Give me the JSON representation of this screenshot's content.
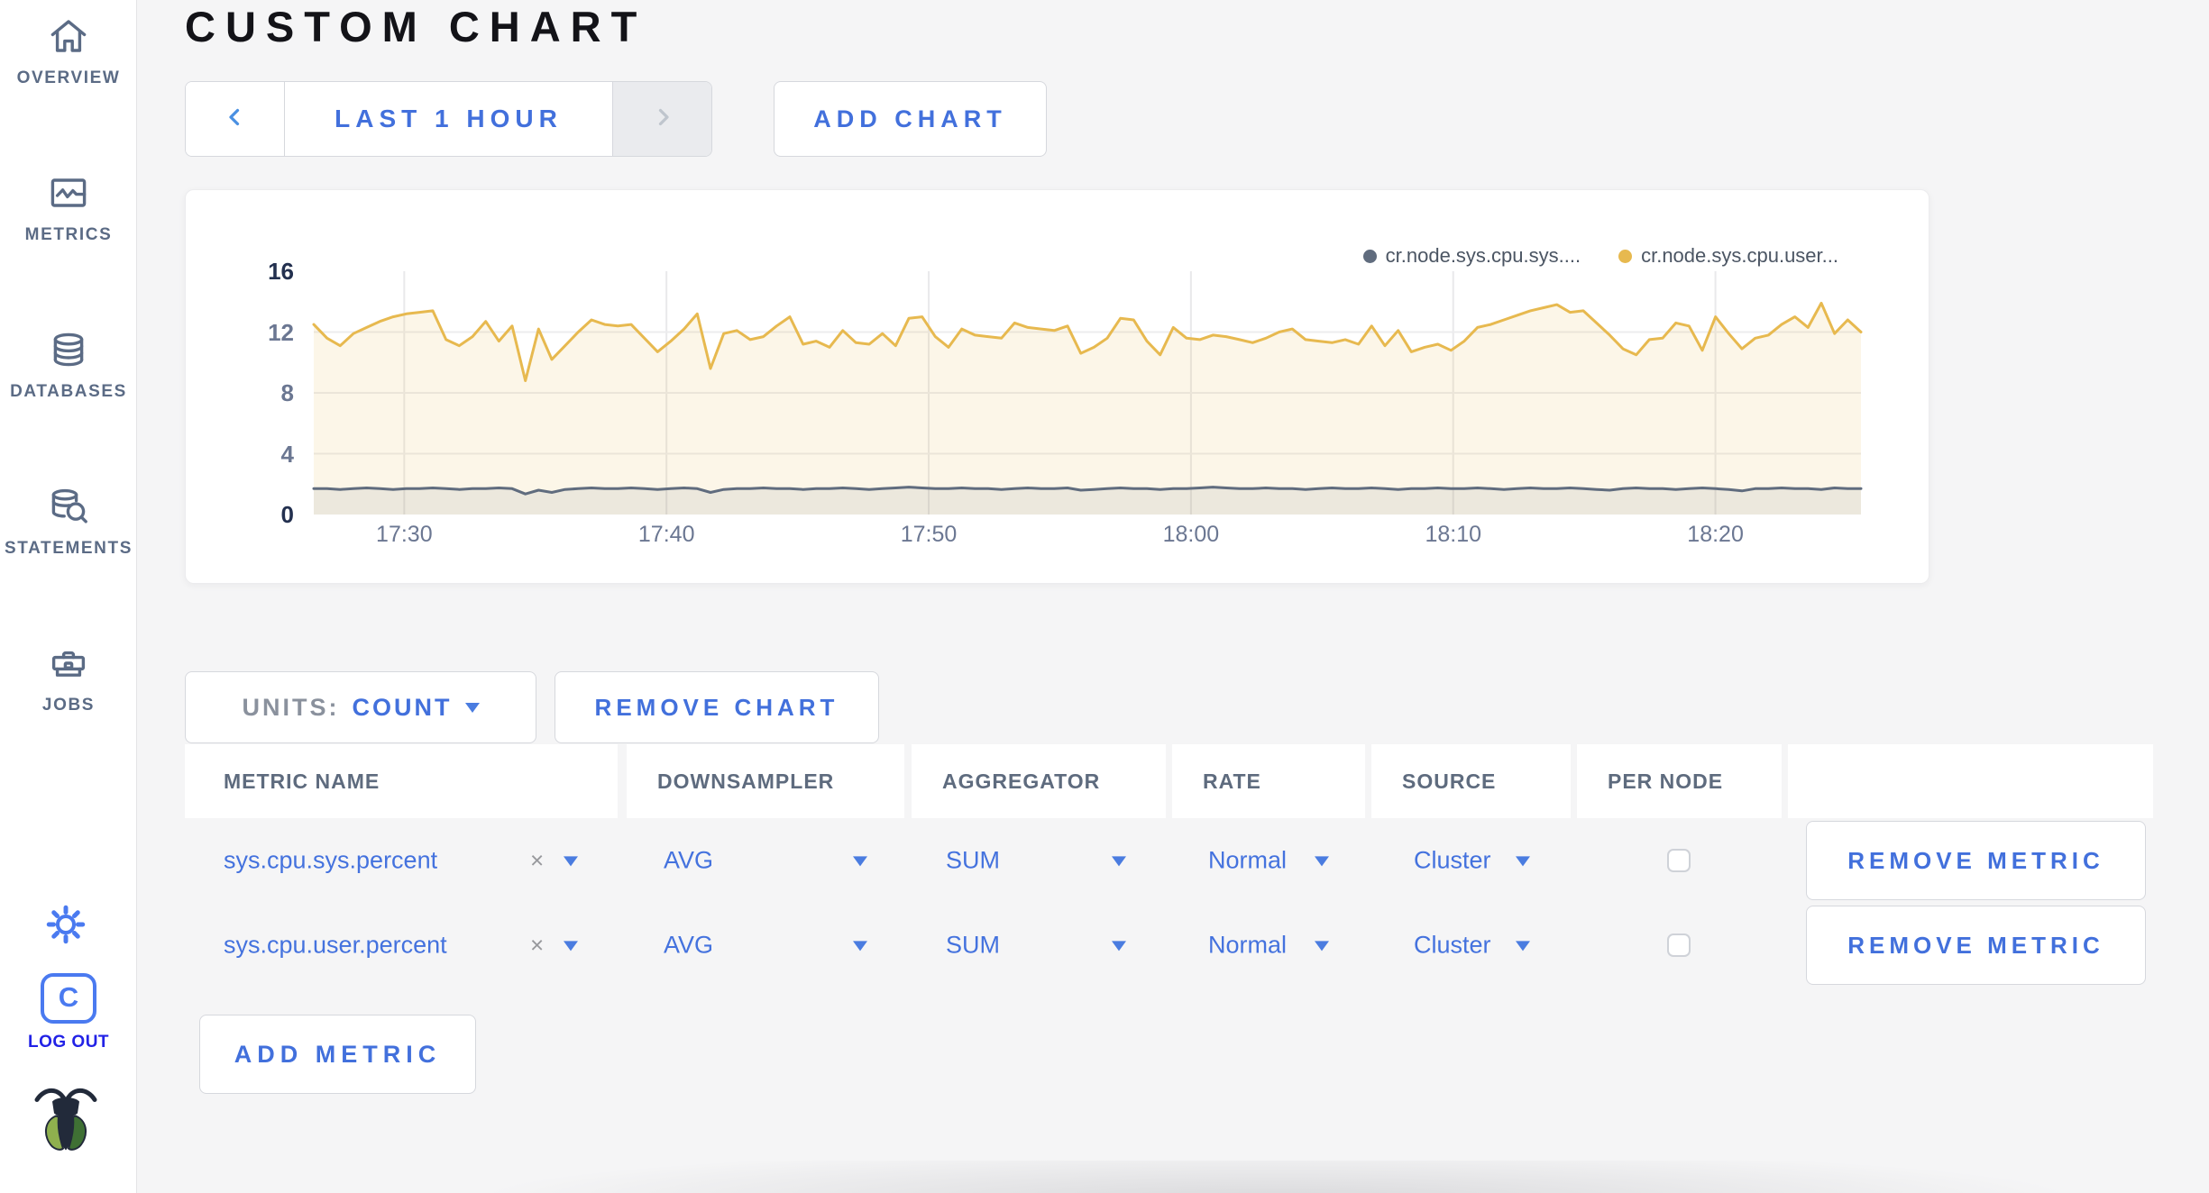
{
  "colors": {
    "accent_blue": "#4270dc",
    "chevron_blue": "#4a90e2",
    "disabled_chevron": "#bfc5cd",
    "icon_blue": "#4a7af0",
    "logout_blue": "#2222e6",
    "sidebar_slate": "#5b6b85",
    "series_sys": "#606c7e",
    "series_user": "#e7b94f",
    "page_bg": "#f5f5f6"
  },
  "sidebar": {
    "items": [
      {
        "label": "OVERVIEW",
        "icon": "home-icon"
      },
      {
        "label": "METRICS",
        "icon": "metrics-icon"
      },
      {
        "label": "DATABASES",
        "icon": "database-icon"
      },
      {
        "label": "STATEMENTS",
        "icon": "statements-icon"
      },
      {
        "label": "JOBS",
        "icon": "jobs-icon"
      }
    ],
    "logout_label": "LOG OUT"
  },
  "header": {
    "title": "CUSTOM CHART"
  },
  "time_controls": {
    "range_label": "LAST 1 HOUR",
    "add_chart_label": "ADD CHART"
  },
  "chart_controls": {
    "units_label": "UNITS:",
    "units_value": "COUNT",
    "remove_chart_label": "REMOVE CHART",
    "add_metric_label": "ADD METRIC"
  },
  "metrics_table": {
    "columns": [
      "METRIC NAME",
      "DOWNSAMPLER",
      "AGGREGATOR",
      "RATE",
      "SOURCE",
      "PER NODE",
      ""
    ],
    "clear_glyph": "×",
    "rows": [
      {
        "metric_name": "sys.cpu.sys.percent",
        "downsampler": "AVG",
        "aggregator": "SUM",
        "rate": "Normal",
        "source": "Cluster",
        "per_node_checked": false,
        "remove_label": "REMOVE METRIC"
      },
      {
        "metric_name": "sys.cpu.user.percent",
        "downsampler": "AVG",
        "aggregator": "SUM",
        "rate": "Normal",
        "source": "Cluster",
        "per_node_checked": false,
        "remove_label": "REMOVE METRIC"
      }
    ]
  },
  "chart_data": {
    "type": "line",
    "title": "",
    "xlabel": "",
    "ylabel": "",
    "ylim": [
      0,
      16
    ],
    "y_ticks": [
      0,
      4,
      8,
      12,
      16
    ],
    "y_gridlines": [
      4,
      8,
      12
    ],
    "grid": true,
    "legend_position": "top-right",
    "x_start": "17:26",
    "x_end": "18:25",
    "x_domain_minutes": 59,
    "x_tick_minutes": [
      3.45,
      13.45,
      23.45,
      33.45,
      43.45,
      53.45
    ],
    "x_ticks": [
      "17:30",
      "17:40",
      "17:50",
      "18:00",
      "18:10",
      "18:20"
    ],
    "series": [
      {
        "name": "cr.node.sys.cpu.sys....",
        "color": "#606c7e",
        "fill": "rgba(96,108,126,0.10)",
        "values": [
          1.7,
          1.7,
          1.65,
          1.7,
          1.75,
          1.7,
          1.65,
          1.7,
          1.7,
          1.75,
          1.7,
          1.65,
          1.7,
          1.7,
          1.75,
          1.7,
          1.35,
          1.6,
          1.45,
          1.65,
          1.7,
          1.75,
          1.7,
          1.7,
          1.75,
          1.7,
          1.65,
          1.7,
          1.75,
          1.7,
          1.45,
          1.65,
          1.7,
          1.7,
          1.75,
          1.7,
          1.7,
          1.65,
          1.7,
          1.7,
          1.75,
          1.7,
          1.65,
          1.7,
          1.75,
          1.8,
          1.75,
          1.7,
          1.7,
          1.75,
          1.7,
          1.7,
          1.65,
          1.7,
          1.75,
          1.7,
          1.7,
          1.75,
          1.6,
          1.65,
          1.7,
          1.75,
          1.7,
          1.7,
          1.65,
          1.7,
          1.7,
          1.75,
          1.8,
          1.75,
          1.7,
          1.7,
          1.75,
          1.7,
          1.7,
          1.65,
          1.7,
          1.75,
          1.7,
          1.7,
          1.75,
          1.7,
          1.65,
          1.7,
          1.7,
          1.75,
          1.7,
          1.7,
          1.75,
          1.7,
          1.65,
          1.7,
          1.75,
          1.7,
          1.7,
          1.75,
          1.7,
          1.65,
          1.6,
          1.7,
          1.75,
          1.7,
          1.7,
          1.65,
          1.7,
          1.75,
          1.7,
          1.65,
          1.55,
          1.7,
          1.7,
          1.75,
          1.7,
          1.7,
          1.65,
          1.75,
          1.7,
          1.7
        ]
      },
      {
        "name": "cr.node.sys.cpu.user...",
        "color": "#e7b94f",
        "fill": "rgba(231,185,79,0.13)",
        "values": [
          12.5,
          11.6,
          11.1,
          11.9,
          12.3,
          12.7,
          13.0,
          13.2,
          13.3,
          13.4,
          11.5,
          11.1,
          11.7,
          12.7,
          11.4,
          12.4,
          8.8,
          12.2,
          10.2,
          11.1,
          12.0,
          12.8,
          12.5,
          12.4,
          12.5,
          11.6,
          10.7,
          11.4,
          12.2,
          13.2,
          9.6,
          11.9,
          12.1,
          11.5,
          11.7,
          12.4,
          13.0,
          11.2,
          11.4,
          11.0,
          12.1,
          11.3,
          11.2,
          11.9,
          11.1,
          12.9,
          13.0,
          11.7,
          11.0,
          12.2,
          11.8,
          11.7,
          11.6,
          12.6,
          12.3,
          12.2,
          12.1,
          12.4,
          10.6,
          11.0,
          11.6,
          12.9,
          12.8,
          11.4,
          10.5,
          12.3,
          11.6,
          11.5,
          11.8,
          11.7,
          11.5,
          11.3,
          11.6,
          12.0,
          12.2,
          11.5,
          11.4,
          11.3,
          11.5,
          11.2,
          12.4,
          11.1,
          12.1,
          10.7,
          11.0,
          11.2,
          10.8,
          11.4,
          12.3,
          12.5,
          12.8,
          13.1,
          13.4,
          13.6,
          13.8,
          13.3,
          13.4,
          12.6,
          11.8,
          10.9,
          10.5,
          11.5,
          11.6,
          12.6,
          12.4,
          10.8,
          13.0,
          11.9,
          10.9,
          11.6,
          11.8,
          12.5,
          13.0,
          12.3,
          13.9,
          11.9,
          12.8,
          12.0
        ]
      }
    ]
  }
}
